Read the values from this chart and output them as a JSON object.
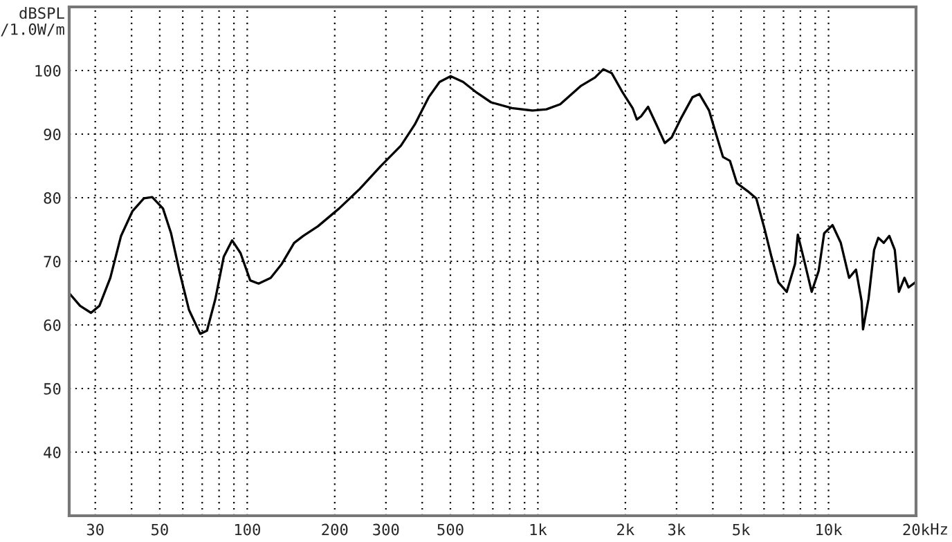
{
  "chart_data": {
    "type": "line",
    "ylabel": "dBSPL\n/1.0W/m",
    "x": [
      24.4,
      26.6,
      29.0,
      31.0,
      33.8,
      36.8,
      40.3,
      44.1,
      47.1,
      51.3,
      54.7,
      58.4,
      63.0,
      68.9,
      72.7,
      77.7,
      83.0,
      88.7,
      94.8,
      102.4,
      109.4,
      120.4,
      131.5,
      145,
      156,
      175,
      207,
      244,
      287,
      338,
      377,
      421,
      459,
      501,
      553,
      617,
      690,
      814,
      958,
      1070,
      1194,
      1408,
      1572,
      1680,
      1794,
      1960,
      2118,
      2190,
      2265,
      2394,
      2558,
      2733,
      2888,
      3117,
      3404,
      3597,
      3882,
      4147,
      4334,
      4580,
      4838,
      5282,
      5641,
      6024,
      6364,
      6723,
      7180,
      7669,
      7840,
      8190,
      8750,
      9250,
      9660,
      10320,
      11020,
      11770,
      12430,
      13000,
      13140,
      13730,
      14350,
      14830,
      15490,
      16180,
      16900,
      17460,
      18250,
      18850,
      19900
    ],
    "series": [
      {
        "color": "#000000",
        "values": [
          65.0,
          63.0,
          61.9,
          63.0,
          67.4,
          74.0,
          77.9,
          79.9,
          80.1,
          78.3,
          74.4,
          68.5,
          62.4,
          58.6,
          59.1,
          64.1,
          70.7,
          73.3,
          71.3,
          67.0,
          66.5,
          67.4,
          69.6,
          72.9,
          74.0,
          75.5,
          78.3,
          81.4,
          84.9,
          88.2,
          91.5,
          95.8,
          98.2,
          99.1,
          98.2,
          96.5,
          95.0,
          94.1,
          93.7,
          93.9,
          94.7,
          97.6,
          98.9,
          100.2,
          99.6,
          96.5,
          94.1,
          92.3,
          92.8,
          94.3,
          91.5,
          88.6,
          89.5,
          92.6,
          95.8,
          96.3,
          93.7,
          89.3,
          86.4,
          85.8,
          82.3,
          81.0,
          79.9,
          75.1,
          70.7,
          66.7,
          65.2,
          69.6,
          74.2,
          70.7,
          65.2,
          68.5,
          74.4,
          75.7,
          72.9,
          67.4,
          68.7,
          63.7,
          59.3,
          64.1,
          71.8,
          73.7,
          72.9,
          74.0,
          71.8,
          65.2,
          67.4,
          65.9,
          66.7
        ]
      }
    ],
    "log": "x",
    "xlim": [
      24.4,
      20000
    ],
    "ylim": [
      30,
      110
    ],
    "xticks": [
      {
        "value": 30,
        "label": "30"
      },
      {
        "value": 40,
        "label": null
      },
      {
        "value": 50,
        "label": "50"
      },
      {
        "value": 60,
        "label": null
      },
      {
        "value": 70,
        "label": null
      },
      {
        "value": 80,
        "label": null
      },
      {
        "value": 90,
        "label": null
      },
      {
        "value": 100,
        "label": "100"
      },
      {
        "value": 200,
        "label": "200"
      },
      {
        "value": 300,
        "label": "300"
      },
      {
        "value": 400,
        "label": null
      },
      {
        "value": 500,
        "label": "500"
      },
      {
        "value": 600,
        "label": null
      },
      {
        "value": 700,
        "label": null
      },
      {
        "value": 800,
        "label": null
      },
      {
        "value": 900,
        "label": null
      },
      {
        "value": 1000,
        "label": "1k"
      },
      {
        "value": 2000,
        "label": "2k"
      },
      {
        "value": 3000,
        "label": "3k"
      },
      {
        "value": 4000,
        "label": null
      },
      {
        "value": 5000,
        "label": "5k"
      },
      {
        "value": 6000,
        "label": null
      },
      {
        "value": 7000,
        "label": null
      },
      {
        "value": 8000,
        "label": null
      },
      {
        "value": 9000,
        "label": null
      },
      {
        "value": 10000,
        "label": "10k"
      },
      {
        "value": 20000,
        "label": "20k"
      }
    ],
    "xlabel": "Hz",
    "yticks": [
      40,
      50,
      60,
      70,
      80,
      90,
      100
    ],
    "grid": true,
    "line_style": "solid",
    "marker": "none"
  }
}
